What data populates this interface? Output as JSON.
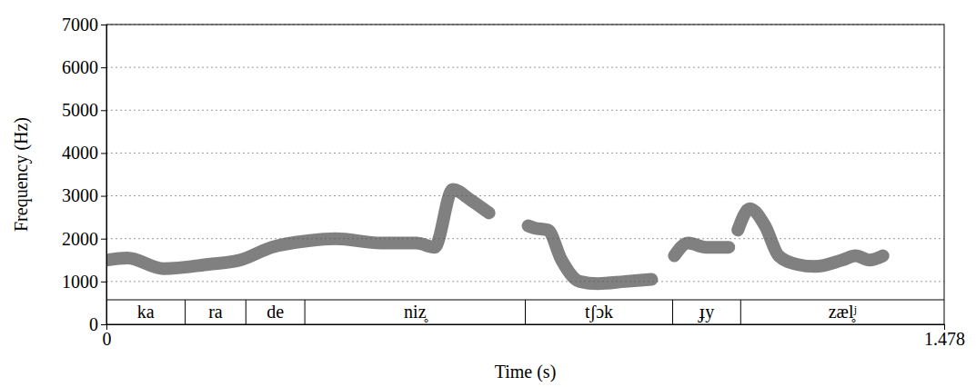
{
  "chart_data": {
    "type": "line",
    "xlabel": "Time (s)",
    "ylabel": "Frequency (Hz)",
    "x": [
      0,
      0.037,
      0.101,
      0.18,
      0.236,
      0.292,
      0.356,
      0.404,
      0.484,
      0.547,
      0.579,
      0.611,
      0.643,
      0.675,
      0.71,
      0.744,
      0.755,
      0.779,
      0.803,
      0.835,
      0.867,
      0.915,
      0.962,
      0.985,
      1.002,
      1.026,
      1.058,
      1.098,
      1.106,
      1.114,
      1.135,
      1.162,
      1.186,
      1.218,
      1.25,
      1.298,
      1.322,
      1.346,
      1.37
    ],
    "values": [
      1500,
      1550,
      1300,
      1400,
      1500,
      1800,
      1950,
      2000,
      1900,
      1900,
      1800,
      3150,
      2900,
      2600,
      null,
      2300,
      2250,
      2200,
      1500,
      1000,
      950,
      1000,
      1050,
      null,
      1600,
      1900,
      1800,
      1800,
      null,
      2200,
      2700,
      2300,
      1600,
      1400,
      1350,
      1500,
      1600,
      1500,
      1600
    ],
    "color": "#555555",
    "segments": [
      {
        "label": "ka",
        "start": 0,
        "end": 0.139
      },
      {
        "label": "ra",
        "start": 0.139,
        "end": 0.246
      },
      {
        "label": "de",
        "start": 0.246,
        "end": 0.35
      },
      {
        "label": "niz̥",
        "start": 0.35,
        "end": 0.739
      },
      {
        "label": "tʃɔk",
        "start": 0.739,
        "end": 0.999
      },
      {
        "label": "ɟy",
        "start": 0.999,
        "end": 1.119
      },
      {
        "label": "zæl̥ʲ",
        "start": 1.119,
        "end": 1.478
      }
    ],
    "xlim": [
      0,
      1.478
    ],
    "xticks": [
      0,
      1.478
    ],
    "ylim": [
      0,
      7000
    ],
    "yticks": [
      0,
      1000,
      2000,
      3000,
      4000,
      5000,
      6000,
      7000
    ],
    "grid": true
  }
}
